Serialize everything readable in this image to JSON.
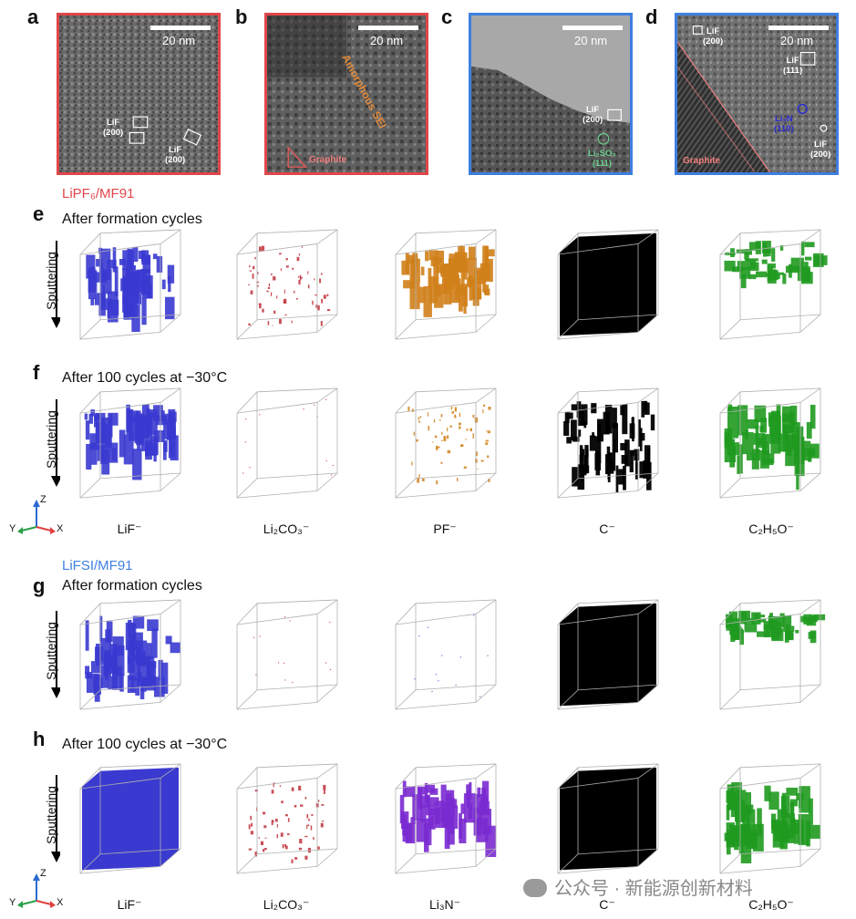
{
  "panels_top": [
    {
      "letter": "a",
      "scale": "20 nm",
      "labels": [
        "LiF\n(200)",
        "LiF\n(200)"
      ]
    },
    {
      "letter": "b",
      "scale": "20 nm",
      "labels": [
        "Amorphous SEI",
        "Graphite"
      ]
    },
    {
      "letter": "c",
      "scale": "20 nm",
      "labels": [
        "LiF\n(200)",
        "Li₂SO₃\n(111)"
      ]
    },
    {
      "letter": "d",
      "scale": "20 nm",
      "labels": [
        "LiF\n(200)",
        "LiF\n(111)",
        "Li₃N\n(110)",
        "LiF\n(200)",
        "Graphite"
      ]
    }
  ],
  "electrolyte_1": "LiPF₆/MF91",
  "electrolyte_2": "LiFSI/MF91",
  "rows": [
    {
      "letter": "e",
      "condition": "After formation cycles"
    },
    {
      "letter": "f",
      "condition": "After 100 cycles at −30°C"
    },
    {
      "letter": "g",
      "condition": "After formation cycles"
    },
    {
      "letter": "h",
      "condition": "After 100 cycles at −30°C"
    }
  ],
  "sputtering": "Sputtering",
  "ions_set1": [
    "LiF⁻",
    "Li₂CO₃⁻",
    "PF⁻",
    "C⁻",
    "C₂H₅O⁻"
  ],
  "ions_set2": [
    "LiF⁻",
    "Li₂CO₃⁻",
    "Li₃N⁻",
    "C⁻",
    "C₂H₅O⁻"
  ],
  "axes": {
    "z": "Z",
    "y": "Y",
    "x": "X"
  },
  "watermark": "公众号 · 新能源创新材料",
  "colors": {
    "lif": "#3a3ad0",
    "li2co3": "#c0303a",
    "pf": "#d0801a",
    "c": "#000000",
    "c2h5o": "#1f9a1f",
    "li3n": "#7a2ad0",
    "red": "#e0464b",
    "blue": "#3d7fe0"
  }
}
